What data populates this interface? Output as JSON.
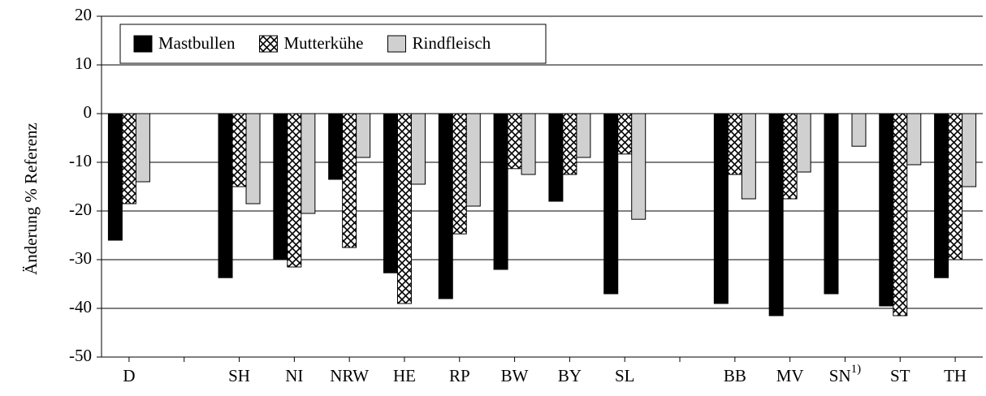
{
  "chart_data": {
    "type": "bar",
    "y_label": "Änderung % Referenz",
    "categories": [
      "D",
      null,
      "SH",
      "NI",
      "NRW",
      "HE",
      "RP",
      "BW",
      "BY",
      "SL",
      null,
      "BB",
      "MV",
      "SN",
      "ST",
      "TH"
    ],
    "category_notes": [
      null,
      null,
      null,
      null,
      null,
      null,
      null,
      null,
      null,
      null,
      null,
      null,
      null,
      "1)",
      null,
      null
    ],
    "series": [
      {
        "name": "Mastbullen",
        "color": "#000000",
        "hatch": false,
        "values": [
          -26,
          null,
          -33.7,
          -30,
          -13.5,
          -32.7,
          -38,
          -32,
          -18,
          -37,
          null,
          -39,
          -41.5,
          -37,
          -39.5,
          -33.7
        ]
      },
      {
        "name": "Mutterkühe",
        "color": "#ffffff",
        "hatch": true,
        "values": [
          -18.5,
          null,
          -15,
          -31.5,
          -27.5,
          -39,
          -24.7,
          -11.3,
          -12.5,
          -8.3,
          null,
          -12.5,
          -17.5,
          null,
          -41.5,
          -30
        ]
      },
      {
        "name": "Rindfleisch",
        "color": "#d0d0d0",
        "hatch": false,
        "values": [
          -14,
          null,
          -18.5,
          -20.5,
          -9,
          -14.5,
          -19,
          -12.5,
          -9,
          -21.7,
          null,
          -17.5,
          -12,
          -6.7,
          -10.5,
          -15
        ]
      }
    ],
    "ylim": [
      -50,
      20
    ],
    "yticks": [
      -50,
      -40,
      -30,
      -20,
      -10,
      0,
      10,
      20
    ],
    "grid": true,
    "legend": "top-left"
  }
}
